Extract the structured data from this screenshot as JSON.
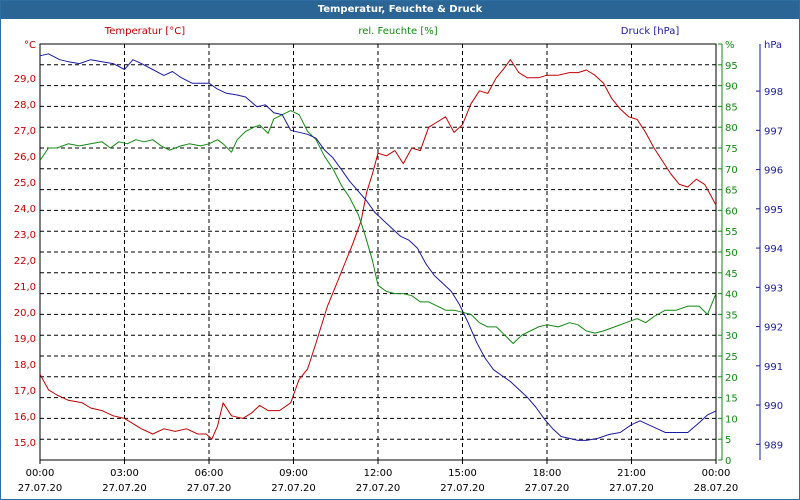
{
  "window": {
    "title": "Temperatur, Feuchte & Druck"
  },
  "chart_data": {
    "type": "line",
    "title": "Temperatur, Feuchte & Druck",
    "grid": true,
    "x_ticks": [
      {
        "time": "00:00",
        "date": "27.07.20"
      },
      {
        "time": "03:00",
        "date": "27.07.20"
      },
      {
        "time": "06:00",
        "date": "27.07.20"
      },
      {
        "time": "09:00",
        "date": "27.07.20"
      },
      {
        "time": "12:00",
        "date": "27.07.20"
      },
      {
        "time": "15:00",
        "date": "27.07.20"
      },
      {
        "time": "18:00",
        "date": "27.07.20"
      },
      {
        "time": "21:00",
        "date": "27.07.20"
      },
      {
        "time": "00:00",
        "date": "28.07.20"
      }
    ],
    "xlim": [
      0,
      24
    ],
    "axes": {
      "temperature": {
        "header": "Temperatur [°C]",
        "unit": "°C",
        "color": "#c00000",
        "ylim": [
          14.3,
          30.3
        ],
        "ticks": [
          "15,0",
          "16,0",
          "17,0",
          "18,0",
          "19,0",
          "20,0",
          "21,0",
          "22,0",
          "23,0",
          "24,0",
          "25,0",
          "26,0",
          "27,0",
          "28,0",
          "29,0"
        ]
      },
      "humidity": {
        "header": "rel. Feuchte [%]",
        "unit": "%",
        "color": "#118811",
        "ylim": [
          0,
          100
        ],
        "ticks": [
          "0",
          "5",
          "10",
          "15",
          "20",
          "25",
          "30",
          "35",
          "40",
          "45",
          "50",
          "55",
          "60",
          "65",
          "70",
          "75",
          "80",
          "85",
          "90",
          "95",
          "%"
        ]
      },
      "pressure": {
        "header": "Druck [hPa]",
        "unit": "hPa",
        "color": "#1a1aa0",
        "ylim": [
          988.6,
          999.2
        ],
        "ticks": [
          "989",
          "990",
          "991",
          "992",
          "993",
          "994",
          "995",
          "996",
          "997",
          "998"
        ]
      }
    },
    "series": [
      {
        "name": "Temperatur [°C]",
        "axis": "temperature",
        "points": [
          [
            0,
            17.6
          ],
          [
            0.3,
            17.0
          ],
          [
            0.6,
            16.8
          ],
          [
            1,
            16.6
          ],
          [
            1.5,
            16.5
          ],
          [
            1.8,
            16.3
          ],
          [
            2.2,
            16.2
          ],
          [
            2.6,
            16.0
          ],
          [
            3,
            15.9
          ],
          [
            3.3,
            15.7
          ],
          [
            3.6,
            15.5
          ],
          [
            4,
            15.3
          ],
          [
            4.4,
            15.5
          ],
          [
            4.8,
            15.4
          ],
          [
            5.2,
            15.5
          ],
          [
            5.6,
            15.3
          ],
          [
            5.9,
            15.3
          ],
          [
            6.1,
            15.1
          ],
          [
            6.3,
            15.6
          ],
          [
            6.5,
            16.5
          ],
          [
            6.8,
            16.0
          ],
          [
            7.2,
            15.9
          ],
          [
            7.5,
            16.1
          ],
          [
            7.8,
            16.4
          ],
          [
            8.1,
            16.2
          ],
          [
            8.5,
            16.2
          ],
          [
            8.9,
            16.5
          ],
          [
            9.2,
            17.4
          ],
          [
            9.5,
            17.8
          ],
          [
            9.8,
            18.8
          ],
          [
            10.2,
            20.2
          ],
          [
            10.5,
            21.0
          ],
          [
            10.8,
            21.8
          ],
          [
            11.1,
            22.6
          ],
          [
            11.4,
            23.5
          ],
          [
            11.6,
            24.6
          ],
          [
            11.8,
            25.3
          ],
          [
            12,
            26.1
          ],
          [
            12.3,
            26.0
          ],
          [
            12.6,
            26.2
          ],
          [
            12.9,
            25.7
          ],
          [
            13.2,
            26.3
          ],
          [
            13.5,
            26.2
          ],
          [
            13.8,
            27.1
          ],
          [
            14.1,
            27.3
          ],
          [
            14.4,
            27.5
          ],
          [
            14.7,
            26.9
          ],
          [
            15,
            27.2
          ],
          [
            15.3,
            28.0
          ],
          [
            15.6,
            28.5
          ],
          [
            15.9,
            28.4
          ],
          [
            16.2,
            29.0
          ],
          [
            16.5,
            29.4
          ],
          [
            16.7,
            29.7
          ],
          [
            17,
            29.2
          ],
          [
            17.3,
            29.0
          ],
          [
            17.7,
            29.0
          ],
          [
            18,
            29.1
          ],
          [
            18.4,
            29.1
          ],
          [
            18.8,
            29.2
          ],
          [
            19.1,
            29.2
          ],
          [
            19.4,
            29.3
          ],
          [
            19.7,
            29.1
          ],
          [
            20,
            28.8
          ],
          [
            20.3,
            28.2
          ],
          [
            20.6,
            27.8
          ],
          [
            20.9,
            27.5
          ],
          [
            21.2,
            27.4
          ],
          [
            21.5,
            26.9
          ],
          [
            21.8,
            26.3
          ],
          [
            22.1,
            25.8
          ],
          [
            22.4,
            25.3
          ],
          [
            22.7,
            24.9
          ],
          [
            23,
            24.8
          ],
          [
            23.3,
            25.1
          ],
          [
            23.6,
            24.9
          ],
          [
            23.8,
            24.5
          ],
          [
            24,
            24.1
          ]
        ]
      },
      {
        "name": "rel. Feuchte [%]",
        "axis": "humidity",
        "points": [
          [
            0,
            72
          ],
          [
            0.3,
            75
          ],
          [
            0.6,
            75
          ],
          [
            1,
            76
          ],
          [
            1.4,
            75.5
          ],
          [
            1.8,
            76
          ],
          [
            2.2,
            76.5
          ],
          [
            2.5,
            75
          ],
          [
            2.8,
            76.5
          ],
          [
            3.1,
            76
          ],
          [
            3.4,
            77
          ],
          [
            3.7,
            76.5
          ],
          [
            4,
            77
          ],
          [
            4.3,
            75.5
          ],
          [
            4.6,
            74.5
          ],
          [
            5,
            75.5
          ],
          [
            5.3,
            76
          ],
          [
            5.7,
            75.5
          ],
          [
            6,
            76
          ],
          [
            6.3,
            77
          ],
          [
            6.5,
            76
          ],
          [
            6.8,
            74
          ],
          [
            7,
            77
          ],
          [
            7.3,
            79
          ],
          [
            7.6,
            80
          ],
          [
            7.8,
            80.5
          ],
          [
            8.1,
            78.5
          ],
          [
            8.3,
            82
          ],
          [
            8.6,
            83
          ],
          [
            8.9,
            84
          ],
          [
            9.2,
            83
          ],
          [
            9.5,
            79
          ],
          [
            9.8,
            77
          ],
          [
            10.1,
            73
          ],
          [
            10.4,
            70
          ],
          [
            10.7,
            66
          ],
          [
            11,
            63
          ],
          [
            11.3,
            59
          ],
          [
            11.5,
            55
          ],
          [
            11.8,
            48
          ],
          [
            12,
            42
          ],
          [
            12.3,
            40.5
          ],
          [
            12.6,
            40
          ],
          [
            12.9,
            40
          ],
          [
            13.2,
            39.5
          ],
          [
            13.5,
            38
          ],
          [
            13.8,
            38
          ],
          [
            14.1,
            37
          ],
          [
            14.4,
            36
          ],
          [
            14.7,
            36
          ],
          [
            15,
            35.5
          ],
          [
            15.3,
            35
          ],
          [
            15.6,
            33
          ],
          [
            15.9,
            32
          ],
          [
            16.2,
            32
          ],
          [
            16.5,
            30
          ],
          [
            16.8,
            28
          ],
          [
            17.1,
            30
          ],
          [
            17.4,
            31
          ],
          [
            17.7,
            32
          ],
          [
            18,
            32.5
          ],
          [
            18.4,
            32
          ],
          [
            18.8,
            33
          ],
          [
            19.1,
            32.5
          ],
          [
            19.4,
            31
          ],
          [
            19.7,
            30.5
          ],
          [
            20,
            31
          ],
          [
            20.4,
            32
          ],
          [
            20.8,
            33
          ],
          [
            21.2,
            34
          ],
          [
            21.5,
            33
          ],
          [
            21.8,
            34.5
          ],
          [
            22.2,
            36
          ],
          [
            22.6,
            36
          ],
          [
            23,
            37
          ],
          [
            23.4,
            37
          ],
          [
            23.7,
            35
          ],
          [
            24,
            40
          ]
        ]
      },
      {
        "name": "Druck [hPa]",
        "axis": "pressure",
        "points": [
          [
            0,
            998.9
          ],
          [
            0.3,
            998.95
          ],
          [
            0.7,
            998.8
          ],
          [
            1,
            998.75
          ],
          [
            1.4,
            998.7
          ],
          [
            1.8,
            998.8
          ],
          [
            2.2,
            998.75
          ],
          [
            2.6,
            998.7
          ],
          [
            3,
            998.55
          ],
          [
            3.3,
            998.8
          ],
          [
            3.6,
            998.7
          ],
          [
            4,
            998.55
          ],
          [
            4.4,
            998.4
          ],
          [
            4.7,
            998.5
          ],
          [
            5,
            998.35
          ],
          [
            5.4,
            998.2
          ],
          [
            5.7,
            998.2
          ],
          [
            6,
            998.2
          ],
          [
            6.3,
            998.05
          ],
          [
            6.6,
            997.95
          ],
          [
            7,
            997.9
          ],
          [
            7.3,
            997.85
          ],
          [
            7.7,
            997.6
          ],
          [
            8,
            997.65
          ],
          [
            8.3,
            997.45
          ],
          [
            8.6,
            997.4
          ],
          [
            8.9,
            997.0
          ],
          [
            9.2,
            996.95
          ],
          [
            9.5,
            996.9
          ],
          [
            9.8,
            996.8
          ],
          [
            10.1,
            996.5
          ],
          [
            10.4,
            996.3
          ],
          [
            10.7,
            996.0
          ],
          [
            11,
            995.7
          ],
          [
            11.3,
            995.45
          ],
          [
            11.6,
            995.2
          ],
          [
            11.9,
            994.9
          ],
          [
            12.2,
            994.7
          ],
          [
            12.5,
            994.5
          ],
          [
            12.8,
            994.3
          ],
          [
            13.1,
            994.2
          ],
          [
            13.4,
            994.0
          ],
          [
            13.7,
            993.6
          ],
          [
            14,
            993.3
          ],
          [
            14.3,
            993.1
          ],
          [
            14.6,
            992.9
          ],
          [
            14.9,
            992.55
          ],
          [
            15.2,
            992.1
          ],
          [
            15.5,
            991.6
          ],
          [
            15.8,
            991.2
          ],
          [
            16.1,
            990.9
          ],
          [
            16.4,
            990.75
          ],
          [
            16.7,
            990.6
          ],
          [
            17,
            990.4
          ],
          [
            17.3,
            990.2
          ],
          [
            17.6,
            989.95
          ],
          [
            17.9,
            989.65
          ],
          [
            18.2,
            989.4
          ],
          [
            18.5,
            989.2
          ],
          [
            18.8,
            989.15
          ],
          [
            19.1,
            989.1
          ],
          [
            19.4,
            989.1
          ],
          [
            19.8,
            989.15
          ],
          [
            20.2,
            989.25
          ],
          [
            20.6,
            989.3
          ],
          [
            21,
            989.5
          ],
          [
            21.3,
            989.6
          ],
          [
            21.6,
            989.5
          ],
          [
            21.9,
            989.4
          ],
          [
            22.2,
            989.3
          ],
          [
            22.6,
            989.3
          ],
          [
            23,
            989.3
          ],
          [
            23.4,
            989.55
          ],
          [
            23.7,
            989.75
          ],
          [
            24,
            989.85
          ]
        ]
      }
    ]
  }
}
